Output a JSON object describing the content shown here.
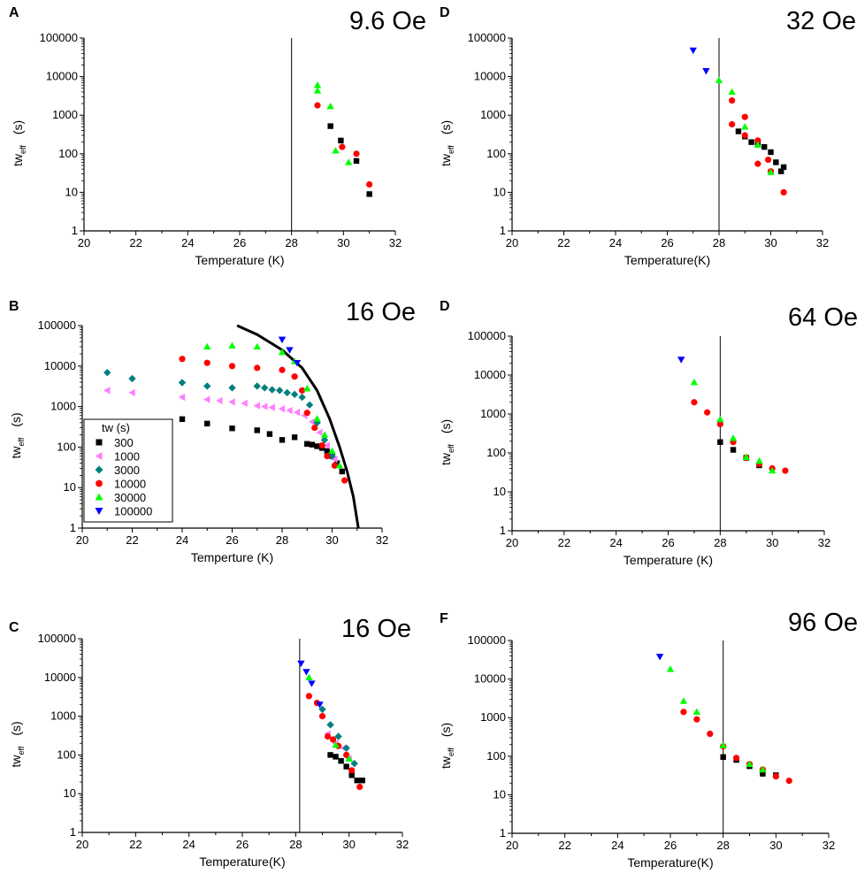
{
  "figure": {
    "legend_title": "tw (s)",
    "series_styles": [
      {
        "name": "300",
        "marker": "square",
        "color": "#000000"
      },
      {
        "name": "1000",
        "marker": "triangle-left",
        "color": "#ff7fff"
      },
      {
        "name": "3000",
        "marker": "diamond",
        "color": "#007f7f"
      },
      {
        "name": "10000",
        "marker": "circle",
        "color": "#ff0000"
      },
      {
        "name": "30000",
        "marker": "triangle-up",
        "color": "#00ff00"
      },
      {
        "name": "100000",
        "marker": "triangle-down",
        "color": "#0000ff"
      }
    ]
  },
  "chart_data": [
    {
      "panel": "A",
      "title": "9.6 Oe",
      "type": "scatter",
      "xlabel": "Temperature (K)",
      "ylabel": "tw",
      "ylabel_sub": "eff",
      "ylabel_unit": "(s)",
      "xlim": [
        20,
        32
      ],
      "ylim": [
        1,
        100000
      ],
      "yscale": "log",
      "xticks": [
        20,
        22,
        24,
        26,
        28,
        30,
        32
      ],
      "yticks": [
        1,
        10,
        100,
        1000,
        10000,
        100000
      ],
      "vline": 28,
      "series": [
        {
          "name": "300",
          "points": [
            [
              29.5,
              520
            ],
            [
              29.9,
              220
            ],
            [
              30.5,
              65
            ],
            [
              31.0,
              9
            ]
          ]
        },
        {
          "name": "10000",
          "points": [
            [
              29.0,
              1800
            ],
            [
              29.95,
              150
            ],
            [
              30.5,
              100
            ],
            [
              31.0,
              16
            ]
          ]
        },
        {
          "name": "30000",
          "points": [
            [
              29.0,
              6000
            ],
            [
              29.0,
              4300
            ],
            [
              29.5,
              1700
            ],
            [
              29.7,
              120
            ],
            [
              30.2,
              60
            ]
          ]
        }
      ]
    },
    {
      "panel": "B",
      "title": "16 Oe",
      "type": "scatter",
      "xlabel": "Temperture (K)",
      "ylabel": "tw",
      "ylabel_sub": "eff",
      "ylabel_unit": "(s)",
      "xlim": [
        20,
        32
      ],
      "ylim": [
        1,
        100000
      ],
      "yscale": "log",
      "xticks": [
        20,
        22,
        24,
        26,
        28,
        30,
        32
      ],
      "yticks": [
        1,
        10,
        100,
        1000,
        10000,
        100000
      ],
      "legend": true,
      "curve": [
        [
          26.2,
          100000
        ],
        [
          27.0,
          60000
        ],
        [
          28.0,
          25000
        ],
        [
          28.8,
          9000
        ],
        [
          29.4,
          2500
        ],
        [
          29.9,
          500
        ],
        [
          30.3,
          100
        ],
        [
          30.6,
          25
        ],
        [
          30.85,
          6
        ],
        [
          31.05,
          1
        ]
      ],
      "series": [
        {
          "name": "300",
          "points": [
            [
              24.0,
              490
            ],
            [
              25.0,
              380
            ],
            [
              26.0,
              290
            ],
            [
              27.0,
              260
            ],
            [
              27.5,
              210
            ],
            [
              28.0,
              150
            ],
            [
              28.5,
              175
            ],
            [
              29.0,
              120
            ],
            [
              29.2,
              115
            ],
            [
              29.4,
              105
            ],
            [
              29.6,
              95
            ],
            [
              29.8,
              80
            ],
            [
              30.0,
              60
            ],
            [
              30.2,
              40
            ],
            [
              30.4,
              25
            ]
          ]
        },
        {
          "name": "1000",
          "points": [
            [
              21.0,
              2500
            ],
            [
              22.0,
              2200
            ],
            [
              24.0,
              1700
            ],
            [
              25.0,
              1500
            ],
            [
              25.5,
              1400
            ],
            [
              26.0,
              1300
            ],
            [
              26.5,
              1200
            ],
            [
              27.0,
              1050
            ],
            [
              27.3,
              1000
            ],
            [
              27.6,
              950
            ],
            [
              28.0,
              880
            ],
            [
              28.3,
              800
            ],
            [
              28.6,
              720
            ],
            [
              28.9,
              600
            ],
            [
              29.2,
              420
            ],
            [
              29.5,
              230
            ],
            [
              29.8,
              110
            ],
            [
              30.1,
              50
            ]
          ]
        },
        {
          "name": "3000",
          "points": [
            [
              21.0,
              6900
            ],
            [
              22.0,
              4900
            ],
            [
              24.0,
              3900
            ],
            [
              25.0,
              3200
            ],
            [
              26.0,
              2900
            ],
            [
              27.0,
              3200
            ],
            [
              27.3,
              2900
            ],
            [
              27.6,
              2600
            ],
            [
              27.9,
              2500
            ],
            [
              28.2,
              2200
            ],
            [
              28.5,
              2000
            ],
            [
              28.8,
              1700
            ],
            [
              29.1,
              1100
            ],
            [
              29.4,
              400
            ],
            [
              29.7,
              150
            ],
            [
              30.0,
              60
            ]
          ]
        },
        {
          "name": "10000",
          "points": [
            [
              24.0,
              15000
            ],
            [
              25.0,
              12000
            ],
            [
              26.0,
              10000
            ],
            [
              27.0,
              9000
            ],
            [
              28.0,
              8000
            ],
            [
              28.5,
              5500
            ],
            [
              28.8,
              2500
            ],
            [
              29.0,
              700
            ],
            [
              29.3,
              300
            ],
            [
              29.6,
              110
            ],
            [
              29.8,
              60
            ],
            [
              30.1,
              35
            ],
            [
              30.5,
              15
            ]
          ]
        },
        {
          "name": "30000",
          "points": [
            [
              25.0,
              30000
            ],
            [
              26.0,
              32000
            ],
            [
              27.0,
              30000
            ],
            [
              28.0,
              22000
            ],
            [
              28.5,
              13000
            ],
            [
              29.0,
              2800
            ],
            [
              29.4,
              500
            ],
            [
              29.7,
              200
            ],
            [
              30.0,
              80
            ],
            [
              30.3,
              35
            ]
          ]
        },
        {
          "name": "100000",
          "points": [
            [
              28.0,
              45000
            ],
            [
              28.3,
              25000
            ],
            [
              28.6,
              12000
            ]
          ]
        }
      ]
    },
    {
      "panel": "C",
      "title": "16 Oe",
      "type": "scatter",
      "xlabel": "Temperature(K)",
      "ylabel": "tw",
      "ylabel_sub": "eff",
      "ylabel_unit": "(s)",
      "xlim": [
        20,
        32
      ],
      "ylim": [
        1,
        100000
      ],
      "yscale": "log",
      "xticks": [
        20,
        22,
        24,
        26,
        28,
        30,
        32
      ],
      "yticks": [
        1,
        10,
        100,
        1000,
        10000,
        100000
      ],
      "vline": 28.15,
      "series": [
        {
          "name": "300",
          "points": [
            [
              29.3,
              100
            ],
            [
              29.5,
              90
            ],
            [
              29.7,
              70
            ],
            [
              29.9,
              50
            ],
            [
              30.1,
              30
            ],
            [
              30.3,
              22
            ],
            [
              30.5,
              22
            ]
          ]
        },
        {
          "name": "1000",
          "points": [
            [
              29.2,
              350
            ],
            [
              29.5,
              200
            ],
            [
              29.8,
              150
            ],
            [
              30.0,
              80
            ]
          ]
        },
        {
          "name": "3000",
          "points": [
            [
              29.0,
              1500
            ],
            [
              29.3,
              600
            ],
            [
              29.6,
              300
            ],
            [
              29.9,
              150
            ],
            [
              30.2,
              60
            ]
          ]
        },
        {
          "name": "10000",
          "points": [
            [
              28.5,
              3300
            ],
            [
              28.8,
              2200
            ],
            [
              29.0,
              1000
            ],
            [
              29.2,
              300
            ],
            [
              29.4,
              250
            ],
            [
              29.6,
              170
            ],
            [
              29.9,
              100
            ],
            [
              30.1,
              40
            ],
            [
              30.4,
              15
            ]
          ]
        },
        {
          "name": "30000",
          "points": [
            [
              28.5,
              10000
            ],
            [
              29.5,
              180
            ],
            [
              30.0,
              80
            ]
          ]
        },
        {
          "name": "100000",
          "points": [
            [
              28.2,
              23000
            ],
            [
              28.4,
              14000
            ],
            [
              28.6,
              7000
            ],
            [
              28.9,
              2000
            ]
          ]
        }
      ]
    },
    {
      "panel": "D",
      "title": "32 Oe",
      "type": "scatter",
      "xlabel": "Temperature(K)",
      "ylabel": "tw",
      "ylabel_sub": "eff",
      "ylabel_unit": "(s)",
      "xlim": [
        20,
        32
      ],
      "ylim": [
        1,
        100000
      ],
      "yscale": "log",
      "xticks": [
        20,
        22,
        24,
        26,
        28,
        30,
        32
      ],
      "yticks": [
        1,
        10,
        100,
        1000,
        10000,
        100000
      ],
      "vline": 28,
      "series": [
        {
          "name": "300",
          "points": [
            [
              28.75,
              380
            ],
            [
              29.0,
              280
            ],
            [
              29.25,
              200
            ],
            [
              29.5,
              180
            ],
            [
              29.75,
              150
            ],
            [
              30.0,
              110
            ],
            [
              30.2,
              60
            ],
            [
              30.4,
              35
            ],
            [
              30.5,
              45
            ]
          ]
        },
        {
          "name": "10000",
          "points": [
            [
              28.5,
              2400
            ],
            [
              28.5,
              580
            ],
            [
              29.0,
              900
            ],
            [
              29.0,
              300
            ],
            [
              29.5,
              220
            ],
            [
              29.5,
              55
            ],
            [
              29.9,
              70
            ],
            [
              30.0,
              35
            ],
            [
              30.5,
              10
            ]
          ]
        },
        {
          "name": "30000",
          "points": [
            [
              28.0,
              8000
            ],
            [
              28.5,
              4000
            ],
            [
              29.0,
              500
            ],
            [
              29.5,
              170
            ],
            [
              30.0,
              33
            ]
          ]
        },
        {
          "name": "100000",
          "points": [
            [
              27.0,
              48000
            ],
            [
              27.5,
              14000
            ]
          ]
        }
      ]
    },
    {
      "panel": "D",
      "title": "64 Oe",
      "type": "scatter",
      "xlabel": "Temperature (K)",
      "ylabel": "tw",
      "ylabel_sub": "eff",
      "ylabel_unit": "(s)",
      "xlim": [
        20,
        32
      ],
      "ylim": [
        1,
        100000
      ],
      "yscale": "log",
      "xticks": [
        20,
        22,
        24,
        26,
        28,
        30,
        32
      ],
      "yticks": [
        1,
        10,
        100,
        1000,
        10000,
        100000
      ],
      "vline": 28,
      "series": [
        {
          "name": "300",
          "points": [
            [
              28.0,
              190
            ],
            [
              28.5,
              120
            ],
            [
              29.0,
              75
            ],
            [
              29.5,
              48
            ]
          ]
        },
        {
          "name": "10000",
          "points": [
            [
              27.0,
              2000
            ],
            [
              27.5,
              1100
            ],
            [
              28.0,
              550
            ],
            [
              28.5,
              190
            ],
            [
              29.0,
              75
            ],
            [
              29.5,
              52
            ],
            [
              30.0,
              40
            ],
            [
              30.5,
              35
            ]
          ]
        },
        {
          "name": "30000",
          "points": [
            [
              27.0,
              6500
            ],
            [
              28.0,
              730
            ],
            [
              28.5,
              240
            ],
            [
              29.0,
              78
            ],
            [
              29.5,
              62
            ],
            [
              30.0,
              35
            ]
          ]
        },
        {
          "name": "100000",
          "points": [
            [
              26.5,
              25000
            ]
          ]
        }
      ]
    },
    {
      "panel": "F",
      "title": "96 Oe",
      "type": "scatter",
      "xlabel": "Temperature(K)",
      "ylabel": "tw",
      "ylabel_sub": "eff",
      "ylabel_unit": "(s)",
      "xlim": [
        20,
        32
      ],
      "ylim": [
        1,
        100000
      ],
      "yscale": "log",
      "xticks": [
        20,
        22,
        24,
        26,
        28,
        30,
        32
      ],
      "yticks": [
        1,
        10,
        100,
        1000,
        10000,
        100000
      ],
      "vline": 28,
      "series": [
        {
          "name": "300",
          "points": [
            [
              28.0,
              95
            ],
            [
              28.5,
              80
            ],
            [
              29.0,
              55
            ],
            [
              29.5,
              35
            ],
            [
              30.0,
              32
            ]
          ]
        },
        {
          "name": "10000",
          "points": [
            [
              26.5,
              1400
            ],
            [
              27.0,
              900
            ],
            [
              27.5,
              380
            ],
            [
              28.0,
              180
            ],
            [
              28.5,
              90
            ],
            [
              29.0,
              62
            ],
            [
              29.5,
              45
            ],
            [
              30.0,
              30
            ],
            [
              30.5,
              23
            ]
          ]
        },
        {
          "name": "30000",
          "points": [
            [
              26.0,
              18000
            ],
            [
              26.5,
              2700
            ],
            [
              27.0,
              1400
            ],
            [
              28.0,
              190
            ],
            [
              29.0,
              62
            ],
            [
              29.5,
              45
            ]
          ]
        },
        {
          "name": "100000",
          "points": [
            [
              25.6,
              38000
            ]
          ]
        }
      ]
    }
  ]
}
